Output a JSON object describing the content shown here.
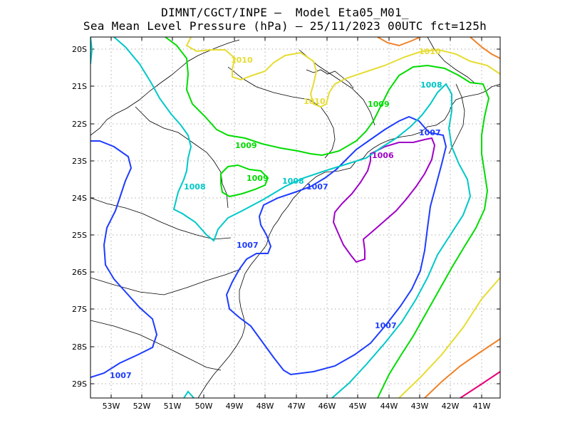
{
  "title": {
    "line1": "DIMNT/CGCT/INPE –  Model Eta05_M01_",
    "line2": "Sea Mean Level Pressure (hPa) – 25/11/2023 00UTC fct=125h"
  },
  "map": {
    "lon_labels": [
      "53W",
      "52W",
      "51W",
      "50W",
      "49W",
      "48W",
      "47W",
      "46W",
      "45W",
      "44W",
      "43W",
      "42W",
      "41W"
    ],
    "lat_labels": [
      "20S",
      "21S",
      "22S",
      "23S",
      "24S",
      "25S",
      "26S",
      "27S",
      "28S",
      "29S"
    ],
    "grid": "dotted",
    "colors": {
      "c1006": "#a000c8",
      "c1007": "#1e3cff",
      "c1008": "#00c8c8",
      "c1009": "#00dc00",
      "c1010": "#e6dc32",
      "c1011": "#f08228",
      "c1012": "#e6007a",
      "coast": "#000000"
    },
    "contour_labels": [
      {
        "id": "l1010a",
        "text": "1010",
        "color": "c1010"
      },
      {
        "id": "l1010b",
        "text": "1010",
        "color": "c1010"
      },
      {
        "id": "l1010c",
        "text": "1010",
        "color": "c1010"
      },
      {
        "id": "l1009a",
        "text": "1009",
        "color": "c1009"
      },
      {
        "id": "l1009b",
        "text": "1009",
        "color": "c1009"
      },
      {
        "id": "l1009c",
        "text": "1009",
        "color": "c1009"
      },
      {
        "id": "l1008a",
        "text": "1008",
        "color": "c1008"
      },
      {
        "id": "l1008b",
        "text": "1008",
        "color": "c1008"
      },
      {
        "id": "l1008c",
        "text": "1008",
        "color": "c1008"
      },
      {
        "id": "l1007a",
        "text": "1007",
        "color": "c1007"
      },
      {
        "id": "l1007b",
        "text": "1007",
        "color": "c1007"
      },
      {
        "id": "l1007c",
        "text": "1007",
        "color": "c1007"
      },
      {
        "id": "l1007d",
        "text": "1007",
        "color": "c1007"
      },
      {
        "id": "l1007e",
        "text": "1007",
        "color": "c1007"
      },
      {
        "id": "l1006a",
        "text": "1006",
        "color": "c1006"
      }
    ]
  }
}
